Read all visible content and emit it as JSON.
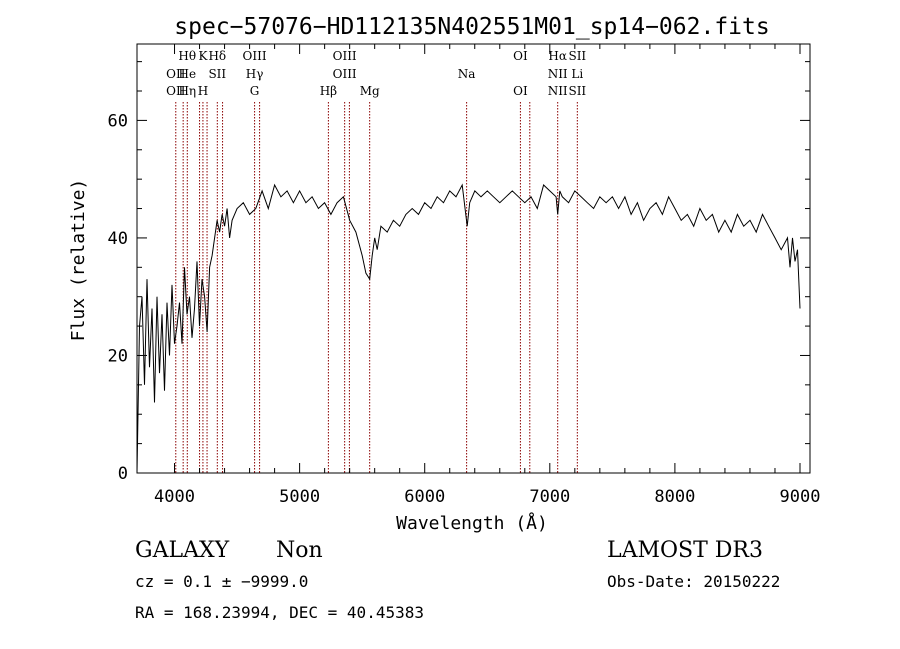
{
  "chart_data": {
    "type": "line",
    "title": "spec−57076−HD112135N402551M01_sp14−062.fits",
    "xlabel": "Wavelength (Å)",
    "ylabel": "Flux (relative)",
    "xlim": [
      3700,
      9080
    ],
    "ylim": [
      0,
      73
    ],
    "xticks": [
      4000,
      5000,
      6000,
      7000,
      8000,
      9000
    ],
    "yticks": [
      0,
      20,
      40,
      60
    ],
    "grid": false,
    "series": [
      {
        "x": [
          3700,
          3720,
          3740,
          3760,
          3780,
          3800,
          3820,
          3840,
          3860,
          3880,
          3900,
          3920,
          3940,
          3960,
          3980,
          4000,
          4020,
          4040,
          4060,
          4080,
          4100,
          4120,
          4140,
          4160,
          4180,
          4200,
          4220,
          4240,
          4260,
          4280,
          4300,
          4320,
          4340,
          4360,
          4380,
          4400,
          4420,
          4440,
          4460,
          4480,
          4500,
          4550,
          4600,
          4650,
          4700,
          4750,
          4800,
          4850,
          4900,
          4950,
          5000,
          5050,
          5100,
          5150,
          5200,
          5250,
          5300,
          5350,
          5400,
          5450,
          5500,
          5530,
          5560,
          5580,
          5600,
          5620,
          5650,
          5700,
          5750,
          5800,
          5850,
          5900,
          5950,
          6000,
          6050,
          6100,
          6150,
          6200,
          6250,
          6300,
          6340,
          6360,
          6400,
          6450,
          6500,
          6550,
          6600,
          6650,
          6700,
          6750,
          6800,
          6850,
          6900,
          6950,
          7000,
          7050,
          7063,
          7080,
          7100,
          7150,
          7200,
          7250,
          7300,
          7350,
          7400,
          7450,
          7500,
          7550,
          7600,
          7650,
          7700,
          7750,
          7800,
          7850,
          7900,
          7950,
          8000,
          8050,
          8100,
          8150,
          8200,
          8250,
          8300,
          8350,
          8400,
          8450,
          8500,
          8550,
          8600,
          8650,
          8700,
          8750,
          8800,
          8850,
          8900,
          8920,
          8940,
          8960,
          8980,
          9000
        ],
        "y": [
          0,
          25,
          30,
          15,
          33,
          18,
          28,
          12,
          30,
          17,
          27,
          14,
          29,
          20,
          32,
          22,
          25,
          29,
          22,
          35,
          27,
          30,
          23,
          28,
          36,
          25,
          33,
          30,
          24,
          35,
          37,
          40,
          43,
          41,
          44,
          42,
          45,
          40,
          43,
          44,
          45,
          46,
          44,
          45,
          48,
          45,
          49,
          47,
          48,
          46,
          48,
          46,
          47,
          45,
          46,
          44,
          46,
          47,
          43,
          41,
          37,
          34,
          33,
          37,
          40,
          38,
          42,
          41,
          43,
          42,
          44,
          45,
          44,
          46,
          45,
          47,
          46,
          48,
          47,
          49,
          42,
          46,
          48,
          47,
          48,
          47,
          46,
          47,
          48,
          47,
          46,
          47,
          45,
          49,
          48,
          47,
          44,
          48,
          47,
          46,
          48,
          47,
          46,
          45,
          47,
          46,
          47,
          45,
          47,
          44,
          46,
          43,
          45,
          46,
          44,
          47,
          45,
          43,
          44,
          42,
          45,
          43,
          44,
          41,
          43,
          41,
          44,
          42,
          43,
          41,
          44,
          42,
          40,
          38,
          40,
          35,
          40,
          36,
          38,
          28
        ]
      }
    ],
    "lines": [
      {
        "x": 4010,
        "labels": [
          "",
          "OII",
          "OII"
        ]
      },
      {
        "x": 4069,
        "labels": [
          "",
          "",
          ""
        ]
      },
      {
        "x": 4102,
        "labels": [
          "Hθ",
          "He",
          "Hη"
        ]
      },
      {
        "x": 4200,
        "labels": [
          "",
          "",
          ""
        ]
      },
      {
        "x": 4227,
        "labels": [
          "K",
          "",
          "H"
        ]
      },
      {
        "x": 4260,
        "labels": [
          "",
          "",
          ""
        ]
      },
      {
        "x": 4342,
        "labels": [
          "Hδ",
          "SII",
          ""
        ]
      },
      {
        "x": 4384,
        "labels": [
          "",
          "",
          ""
        ]
      },
      {
        "x": 4640,
        "labels": [
          "OIII",
          "Hγ",
          "G"
        ]
      },
      {
        "x": 4680,
        "labels": [
          "",
          "",
          ""
        ]
      },
      {
        "x": 5230,
        "labels": [
          "",
          "",
          "Hβ"
        ]
      },
      {
        "x": 5360,
        "labels": [
          "OIII",
          "OIII",
          ""
        ]
      },
      {
        "x": 5398,
        "labels": [
          "",
          "",
          ""
        ]
      },
      {
        "x": 5560,
        "labels": [
          "",
          "",
          "Mg"
        ]
      },
      {
        "x": 6335,
        "labels": [
          "",
          "Na",
          ""
        ]
      },
      {
        "x": 6765,
        "labels": [
          "OI",
          "",
          "OI"
        ]
      },
      {
        "x": 6840,
        "labels": [
          "",
          "",
          ""
        ]
      },
      {
        "x": 7063,
        "labels": [
          "Hα",
          "NII",
          "NII"
        ]
      },
      {
        "x": 7220,
        "labels": [
          "SII",
          "Li",
          "SII"
        ]
      }
    ],
    "line_color": "#8b0000"
  },
  "info": {
    "class": "GALAXY",
    "subclass": "Non",
    "cz": "cz = 0.1 ± −9999.0",
    "radec": "RA = 168.23994, DEC =  40.45383",
    "survey": "LAMOST DR3",
    "obsdate": "Obs-Date: 20150222"
  }
}
